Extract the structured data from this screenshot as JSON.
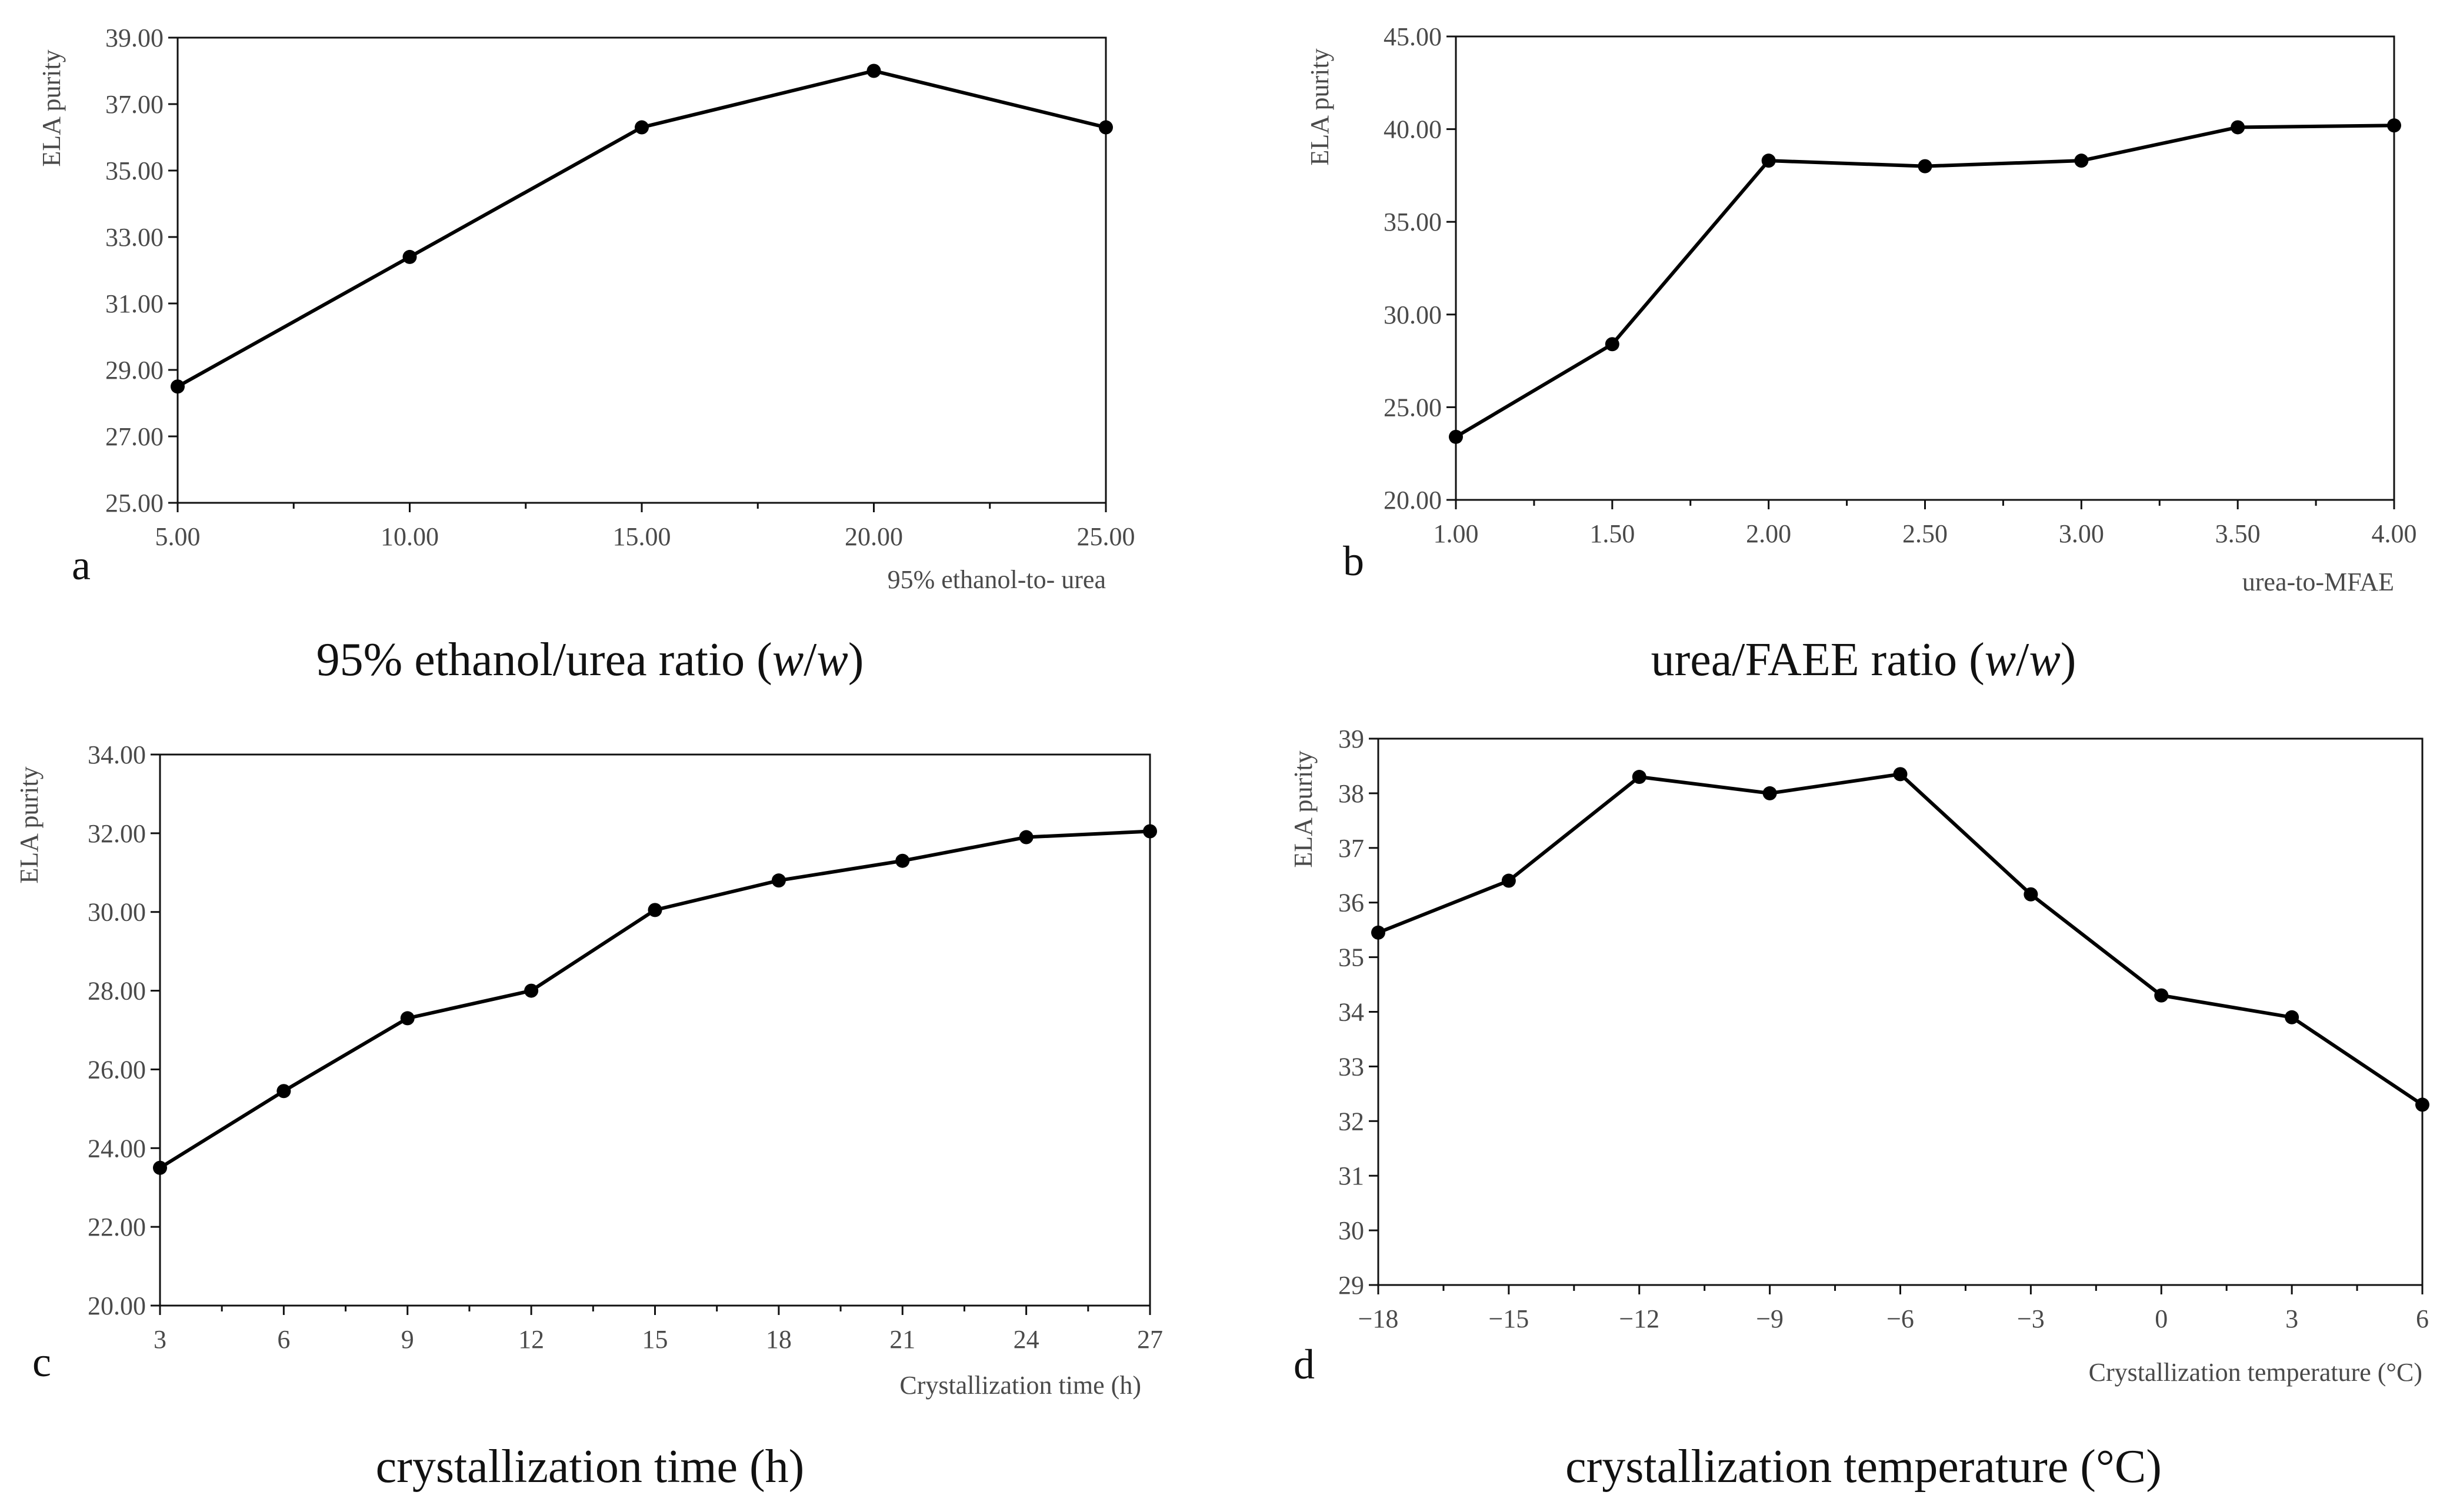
{
  "chart_data": [
    {
      "id": "a",
      "type": "line",
      "panel_letter": "a",
      "ylabel": "ELA purity",
      "xlabel": "95% ethanol-to- urea",
      "caption": [
        "95% ethanol/urea ratio (",
        "w",
        "/",
        "w",
        ")"
      ],
      "x": [
        5,
        10,
        15,
        20,
        25
      ],
      "values": [
        28.5,
        32.4,
        36.3,
        38.0,
        36.3
      ],
      "xlim": [
        5,
        25
      ],
      "ylim": [
        25,
        39
      ],
      "xticks": [
        "5.00",
        "10.00",
        "15.00",
        "20.00",
        "25.00"
      ],
      "yticks": [
        "25.00",
        "27.00",
        "29.00",
        "31.00",
        "33.00",
        "35.00",
        "37.00",
        "39.00"
      ]
    },
    {
      "id": "b",
      "type": "line",
      "panel_letter": "b",
      "ylabel": "ELA purity",
      "xlabel": "urea-to-MFAE",
      "caption": [
        "urea/FAEE ratio (",
        "w",
        "/",
        "w",
        ")"
      ],
      "x": [
        1.0,
        1.5,
        2.0,
        2.5,
        3.0,
        3.5,
        4.0
      ],
      "values": [
        23.4,
        28.4,
        38.3,
        38.0,
        38.3,
        40.1,
        40.2
      ],
      "xlim": [
        1,
        4
      ],
      "ylim": [
        20,
        45
      ],
      "xticks": [
        "1.00",
        "1.50",
        "2.00",
        "2.50",
        "3.00",
        "3.50",
        "4.00"
      ],
      "yticks": [
        "20.00",
        "25.00",
        "30.00",
        "35.00",
        "40.00",
        "45.00"
      ]
    },
    {
      "id": "c",
      "type": "line",
      "panel_letter": "c",
      "ylabel": "ELA purity",
      "xlabel": "Crystallization time (h)",
      "caption": [
        "crystallization time (h)"
      ],
      "x": [
        3,
        6,
        9,
        12,
        15,
        18,
        21,
        24,
        27
      ],
      "values": [
        23.5,
        25.45,
        27.3,
        28.0,
        30.05,
        30.8,
        31.3,
        31.9,
        32.05
      ],
      "xlim": [
        3,
        27
      ],
      "ylim": [
        20,
        34
      ],
      "xticks": [
        "3",
        "6",
        "9",
        "12",
        "15",
        "18",
        "21",
        "24",
        "27"
      ],
      "yticks": [
        "20.00",
        "22.00",
        "24.00",
        "26.00",
        "28.00",
        "30.00",
        "32.00",
        "34.00"
      ]
    },
    {
      "id": "d",
      "type": "line",
      "panel_letter": "d",
      "ylabel": "ELA purity",
      "xlabel": "Crystallization temperature (°C)",
      "caption": [
        "crystallization temperature (°C)"
      ],
      "x": [
        -18,
        -15,
        -12,
        -9,
        -6,
        -3,
        0,
        3,
        6
      ],
      "values": [
        35.45,
        36.4,
        38.3,
        38.0,
        38.35,
        36.15,
        34.3,
        33.9,
        32.3
      ],
      "xlim": [
        -18,
        6
      ],
      "ylim": [
        29,
        39
      ],
      "xticks": [
        "−18",
        "−15",
        "−12",
        "−9",
        "−6",
        "−3",
        "0",
        "3",
        "6"
      ],
      "yticks": [
        "29",
        "30",
        "31",
        "32",
        "33",
        "34",
        "35",
        "36",
        "37",
        "38",
        "39"
      ]
    }
  ]
}
